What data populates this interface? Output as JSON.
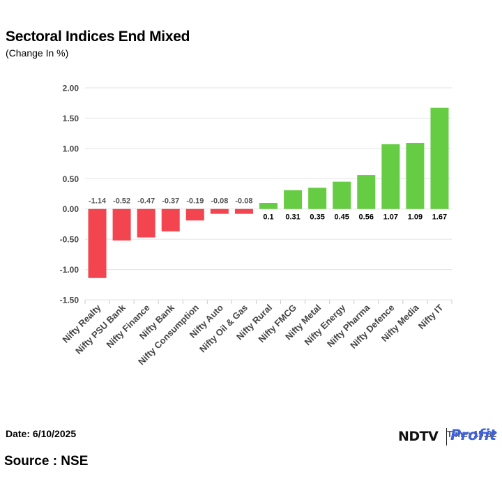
{
  "header": {
    "title": "Sectoral Indices End Mixed",
    "subtitle": "(Change In %)"
  },
  "footer": {
    "date": "Date: 6/10/2025",
    "time": "Time: 15:32",
    "source": "Source : NSE",
    "logo_ndtv": "NDTV",
    "logo_profit": "Profit"
  },
  "colors": {
    "positive": "#66cc44",
    "negative": "#f2454f",
    "grid": "#e3e3e3",
    "axis_text": "#444444",
    "negative_label": "#555555",
    "positive_label": "#000000"
  },
  "chart_data": {
    "type": "bar",
    "title": "Sectoral Indices End Mixed",
    "subtitle": "(Change In %)",
    "categories": [
      "Nifty Realty",
      "Nifty PSU Bank",
      "Nifty Finance",
      "Nifty Bank",
      "Nifty Consumption",
      "Nifty Auto",
      "Nifty Oil & Gas",
      "Nifty Rural",
      "Nifty FMCG",
      "Nifty Metal",
      "Nifty Energy",
      "Nifty Pharma",
      "Nifty Defence",
      "Nifty Media",
      "Nifty IT"
    ],
    "values": [
      -1.14,
      -0.52,
      -0.47,
      -0.37,
      -0.19,
      -0.08,
      -0.08,
      0.1,
      0.31,
      0.35,
      0.45,
      0.56,
      1.07,
      1.09,
      1.67
    ],
    "data_labels": [
      "-1.14",
      "-0.52",
      "-0.47",
      "-0.37",
      "-0.19",
      "-0.08",
      "-0.08",
      "0.1",
      "0.31",
      "0.35",
      "0.45",
      "0.56",
      "1.07",
      "1.09",
      "1.67"
    ],
    "yticks": [
      "2.00",
      "1.50",
      "1.00",
      "0.50",
      "0.00",
      "-0.50",
      "-1.00",
      "-1.50"
    ],
    "ytick_values": [
      2,
      1.5,
      1,
      0.5,
      0,
      -0.5,
      -1,
      -1.5
    ],
    "ylim": [
      -1.5,
      2.0
    ],
    "grid": true,
    "legend": "none"
  }
}
